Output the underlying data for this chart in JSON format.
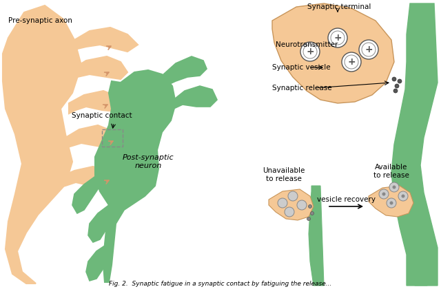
{
  "background_color": "#ffffff",
  "axon_color": "#f5c896",
  "neuron_color": "#6db87a",
  "post_neuron_color": "#6db87a",
  "vesicle_fill": "#f5c896",
  "vesicle_outline": "#888888",
  "text_color": "#000000",
  "arrow_color": "#000000",
  "dashed_box_color": "#888888",
  "labels": {
    "pre_synaptic": "Pre-synaptic axon",
    "synaptic_contact": "Synaptic contact",
    "post_synaptic": "Post-synaptic\nneuron",
    "synaptic_terminal": "Synaptic terminal",
    "neurotransmitter": "Neurotransmitter",
    "synaptic_vesicle": "Synaptic vesicle",
    "synaptic_release": "Synaptic release",
    "unavailable": "Unavailable\nto release",
    "available": "Available\nto release",
    "vesicle_recovery": "vesicle recovery"
  },
  "fig_width": 6.4,
  "fig_height": 4.2,
  "dpi": 100
}
